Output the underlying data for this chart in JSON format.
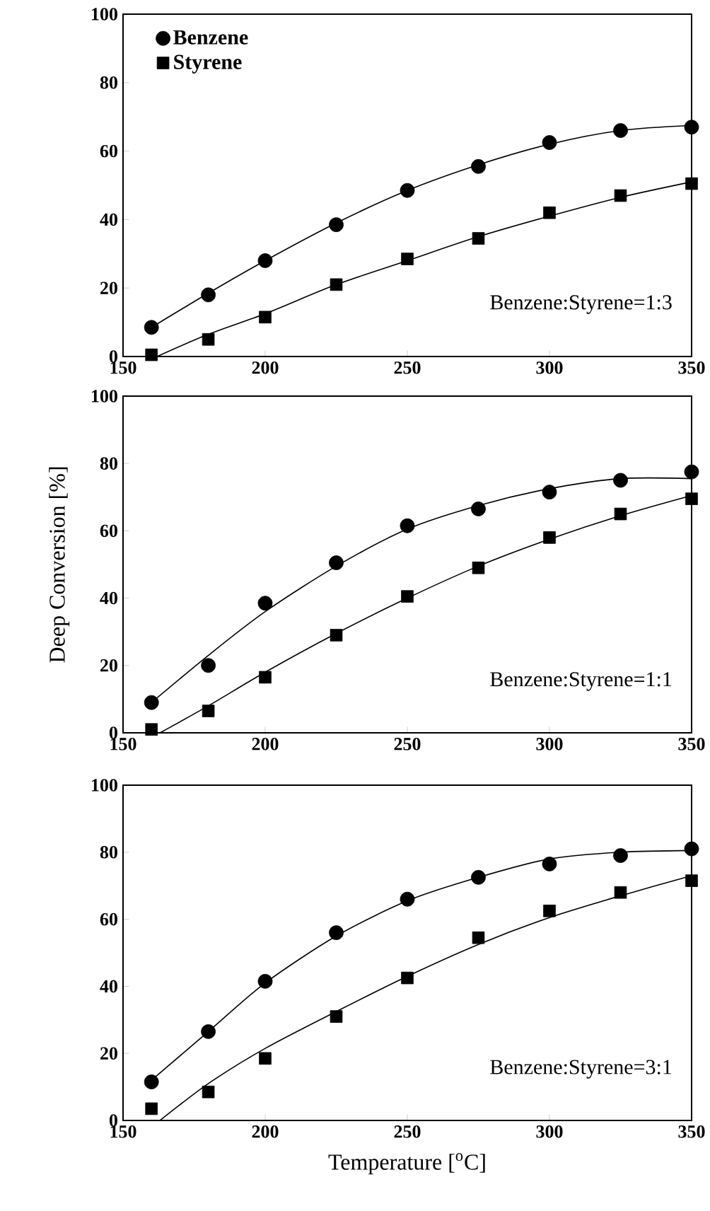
{
  "chart_data": [
    {
      "type": "scatter",
      "x": [
        160,
        180,
        200,
        225,
        250,
        275,
        300,
        325,
        350
      ],
      "xlim": [
        150,
        350
      ],
      "ylim": [
        0,
        100
      ],
      "xticks": [
        150,
        200,
        250,
        300,
        350
      ],
      "yticks": [
        0,
        20,
        40,
        60,
        80,
        100
      ],
      "legend": "top left",
      "annotations": [
        "Benzene:Styrene=1:3"
      ],
      "series": [
        {
          "name": "Benzene",
          "color": "#000000",
          "marker": "circle",
          "values": [
            8.5,
            18,
            28,
            38.5,
            48.5,
            55.5,
            62.5,
            66,
            67
          ]
        },
        {
          "name": "Styrene",
          "color": "#000000",
          "marker": "square",
          "values": [
            0.5,
            5,
            11.5,
            21,
            28.5,
            34.5,
            42,
            47,
            50.5
          ]
        },
        {
          "type": "line",
          "color": "#000000",
          "marker": "none",
          "x": [
            160,
            180,
            200,
            225,
            250,
            275,
            300,
            325,
            350
          ],
          "values": [
            8.5,
            18.5,
            28,
            39,
            48.5,
            56,
            62,
            66,
            67.5
          ]
        },
        {
          "type": "line",
          "color": "#000000",
          "marker": "none",
          "x": [
            162,
            180,
            200,
            225,
            250,
            275,
            300,
            325,
            350
          ],
          "values": [
            0,
            6.5,
            12.5,
            21,
            28,
            35,
            41,
            46.5,
            51
          ]
        }
      ]
    },
    {
      "type": "scatter",
      "x": [
        160,
        180,
        200,
        225,
        250,
        275,
        300,
        325,
        350
      ],
      "xlim": [
        150,
        350
      ],
      "ylim": [
        0,
        100
      ],
      "xticks": [
        150,
        200,
        250,
        300,
        350
      ],
      "yticks": [
        0,
        20,
        40,
        60,
        80,
        100
      ],
      "ylabel": "Deep Conversion [%]",
      "annotations": [
        "Benzene:Styrene=1:1"
      ],
      "series": [
        {
          "color": "#000000",
          "marker": "circle",
          "values": [
            9,
            20,
            38.5,
            50.5,
            61.5,
            66.5,
            71.5,
            75,
            77.5
          ]
        },
        {
          "color": "#000000",
          "marker": "square",
          "values": [
            1,
            6.5,
            16.5,
            29,
            40.5,
            49,
            58,
            65,
            69.5
          ]
        },
        {
          "type": "line",
          "color": "#000000",
          "marker": "none",
          "x": [
            160,
            180,
            200,
            225,
            250,
            275,
            300,
            325,
            350
          ],
          "values": [
            9,
            23,
            36,
            49.5,
            60.5,
            67.5,
            72.5,
            75.5,
            75.5
          ]
        },
        {
          "type": "line",
          "color": "#000000",
          "marker": "none",
          "x": [
            163,
            180,
            200,
            225,
            250,
            275,
            300,
            325,
            350
          ],
          "values": [
            0,
            8,
            18,
            29.5,
            40,
            49.5,
            57.5,
            64.5,
            70.5
          ]
        }
      ]
    },
    {
      "type": "scatter",
      "x": [
        160,
        180,
        200,
        225,
        250,
        275,
        300,
        325,
        350
      ],
      "xlim": [
        150,
        350
      ],
      "ylim": [
        0,
        100
      ],
      "xticks": [
        150,
        200,
        250,
        300,
        350
      ],
      "yticks": [
        0,
        20,
        40,
        60,
        80,
        100
      ],
      "xlabel": "Temperature [$^{o}$C]",
      "annotations": [
        "Benzene:Styrene=3:1"
      ],
      "series": [
        {
          "color": "#000000",
          "marker": "circle",
          "values": [
            11.5,
            26.5,
            41.5,
            56,
            66,
            72.5,
            76.5,
            79,
            81
          ]
        },
        {
          "color": "#000000",
          "marker": "square",
          "values": [
            3.5,
            8.5,
            18.5,
            31,
            42.5,
            54.5,
            62.5,
            68,
            71.5
          ]
        },
        {
          "type": "line",
          "color": "#000000",
          "marker": "none",
          "x": [
            160,
            180,
            200,
            225,
            250,
            275,
            300,
            325,
            350
          ],
          "values": [
            12,
            26.5,
            41,
            55,
            65.5,
            72.5,
            78,
            80,
            80.5
          ]
        },
        {
          "type": "line",
          "color": "#000000",
          "marker": "none",
          "x": [
            163,
            180,
            200,
            225,
            250,
            275,
            300,
            325,
            350
          ],
          "values": [
            0,
            11,
            21.5,
            32.5,
            43,
            52.5,
            60.5,
            67,
            73
          ]
        }
      ]
    }
  ]
}
